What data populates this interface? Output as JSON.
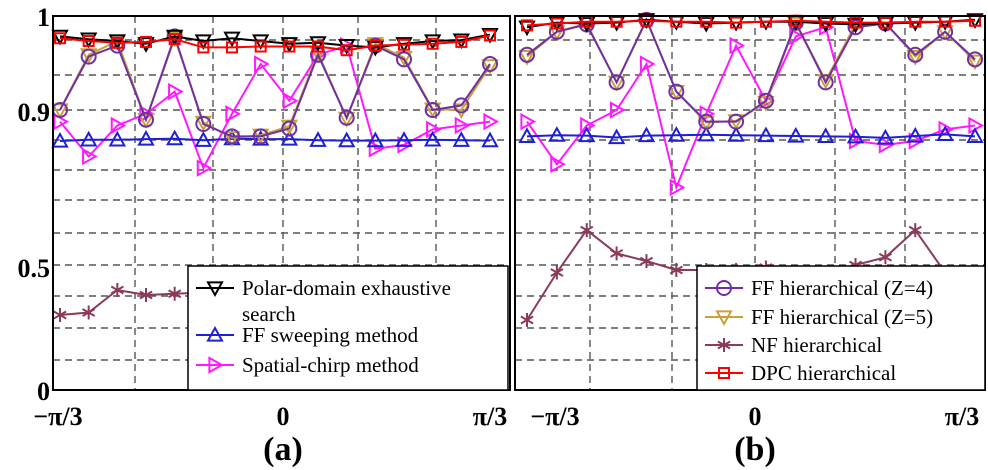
{
  "figure": {
    "y_ticks": [
      "1",
      "0.9",
      "0.5",
      "0"
    ],
    "x_ticks": [
      "−π/3",
      "0",
      "π/3"
    ]
  },
  "chart_data": [
    {
      "panel_label": "(a)",
      "type": "line",
      "title": "",
      "xlabel": "",
      "ylabel": "",
      "x_range": [
        "-π/3",
        "π/3"
      ],
      "x_points": 16,
      "y_scale": "nonlinear (0, 0.5, 0.9, 1 tick positions)",
      "ylim": [
        0,
        1
      ],
      "grid": true,
      "legend_position": "bottom-right",
      "series": [
        {
          "name": "Polar-domain exhaustive search",
          "color": "#000000",
          "marker": "triangle-down",
          "values": [
            0.98,
            0.977,
            0.975,
            0.972,
            0.98,
            0.975,
            0.978,
            0.975,
            0.972,
            0.973,
            0.97,
            0.968,
            0.972,
            0.975,
            0.976,
            0.982
          ]
        },
        {
          "name": "FF sweeping method",
          "color": "#1f1fd6",
          "marker": "triangle-up",
          "values": [
            0.82,
            0.823,
            0.823,
            0.825,
            0.826,
            0.822,
            0.826,
            0.825,
            0.825,
            0.822,
            0.821,
            0.821,
            0.822,
            0.823,
            0.822,
            0.821
          ]
        },
        {
          "name": "Spatial-chirp method",
          "color": "#ff19ff",
          "marker": "triangle-right",
          "values": [
            0.87,
            0.78,
            0.86,
            0.89,
            0.92,
            0.75,
            0.89,
            0.95,
            0.91,
            0.96,
            0.97,
            0.8,
            0.81,
            0.85,
            0.86,
            0.87
          ]
        },
        {
          "name": "FF hierarchical (Z=4)",
          "color": "#7030a0",
          "marker": "circle",
          "values": [
            0.9,
            0.958,
            0.97,
            0.875,
            0.98,
            0.864,
            0.832,
            0.832,
            0.852,
            0.96,
            0.88,
            0.97,
            0.955,
            0.9,
            0.905,
            0.95
          ]
        },
        {
          "name": "FF hierarchical (Z=5)",
          "color": "#c9a13a",
          "marker": "triangle-down",
          "values": [
            0.9,
            0.96,
            0.975,
            0.875,
            0.978,
            0.868,
            0.828,
            0.835,
            0.858,
            0.962,
            0.878,
            0.972,
            0.957,
            0.901,
            0.9,
            0.948
          ]
        },
        {
          "name": "NF hierarchical",
          "color": "#8b3a5a",
          "marker": "asterisk",
          "values": [
            0.3,
            0.31,
            0.4,
            0.38,
            0.385,
            0.39,
            0.4,
            0.41,
            0.41,
            0.4,
            0.4,
            0.4,
            0.39,
            0.37,
            0.35,
            0.3
          ]
        },
        {
          "name": "DPC hierarchical",
          "color": "#ff0000",
          "marker": "square",
          "values": [
            0.978,
            0.975,
            0.973,
            0.974,
            0.977,
            0.968,
            0.968,
            0.969,
            0.969,
            0.969,
            0.965,
            0.97,
            0.971,
            0.972,
            0.974,
            0.981
          ]
        }
      ],
      "legend": {
        "entries": [
          {
            "lines": [
              "Polar-domain exhaustive",
              "search"
            ],
            "color": "#000000",
            "marker": "triangle-down"
          },
          {
            "lines": [
              "FF sweeping method"
            ],
            "color": "#1f1fd6",
            "marker": "triangle-up"
          },
          {
            "lines": [
              "Spatial-chirp method"
            ],
            "color": "#ff19ff",
            "marker": "triangle-right"
          }
        ]
      }
    },
    {
      "panel_label": "(b)",
      "type": "line",
      "title": "",
      "xlabel": "",
      "ylabel": "",
      "x_range": [
        "-π/3",
        "π/3"
      ],
      "x_points": 16,
      "y_scale": "nonlinear (0, 0.5, 0.9, 1 tick positions)",
      "ylim": [
        0,
        1
      ],
      "grid": true,
      "legend_position": "bottom-right",
      "series": [
        {
          "name": "Polar-domain exhaustive search",
          "color": "#000000",
          "marker": "triangle-down",
          "values": [
            0.99,
            0.995,
            0.994,
            0.995,
            0.998,
            0.996,
            0.994,
            0.995,
            0.996,
            0.996,
            0.994,
            0.993,
            0.994,
            0.995,
            0.996,
            0.998
          ]
        },
        {
          "name": "FF sweeping method",
          "color": "#1f1fd6",
          "marker": "triangle-up",
          "values": [
            0.832,
            0.835,
            0.834,
            0.829,
            0.834,
            0.835,
            0.836,
            0.835,
            0.834,
            0.833,
            0.832,
            0.831,
            0.828,
            0.833,
            0.837,
            0.832
          ]
        },
        {
          "name": "Spatial-chirp method",
          "color": "#ff19ff",
          "marker": "triangle-right",
          "values": [
            0.87,
            0.76,
            0.86,
            0.9,
            0.95,
            0.7,
            0.89,
            0.97,
            0.91,
            0.98,
            0.99,
            0.82,
            0.81,
            0.82,
            0.85,
            0.86
          ]
        },
        {
          "name": "FF hierarchical (Z=4)",
          "color": "#7030a0",
          "marker": "circle",
          "values": [
            0.96,
            0.985,
            0.993,
            0.93,
            0.998,
            0.92,
            0.87,
            0.87,
            0.91,
            0.995,
            0.93,
            0.99,
            0.994,
            0.96,
            0.985,
            0.955
          ]
        },
        {
          "name": "FF hierarchical (Z=5)",
          "color": "#c9a13a",
          "marker": "triangle-down",
          "values": [
            0.958,
            0.985,
            0.994,
            0.93,
            0.998,
            0.92,
            0.868,
            0.872,
            0.908,
            0.994,
            0.932,
            0.993,
            0.995,
            0.958,
            0.985,
            0.953
          ]
        },
        {
          "name": "NF hierarchical",
          "color": "#8b3a5a",
          "marker": "asterisk",
          "values": [
            0.28,
            0.47,
            0.59,
            0.53,
            0.51,
            0.48,
            0.48,
            0.48,
            0.49,
            0.47,
            0.47,
            0.5,
            0.52,
            0.59,
            0.47,
            0.28
          ]
        },
        {
          "name": "DPC hierarchical",
          "color": "#ff0000",
          "marker": "square",
          "values": [
            0.992,
            0.994,
            0.996,
            0.996,
            0.997,
            0.996,
            0.996,
            0.995,
            0.996,
            0.997,
            0.996,
            0.995,
            0.995,
            0.996,
            0.996,
            0.997
          ]
        }
      ],
      "legend": {
        "entries": [
          {
            "lines": [
              "FF hierarchical (Z=4)"
            ],
            "color": "#7030a0",
            "marker": "circle"
          },
          {
            "lines": [
              "FF hierarchical (Z=5)"
            ],
            "color": "#c9a13a",
            "marker": "triangle-down"
          },
          {
            "lines": [
              "NF hierarchical"
            ],
            "color": "#8b3a5a",
            "marker": "asterisk"
          },
          {
            "lines": [
              "DPC hierarchical"
            ],
            "color": "#ff0000",
            "marker": "square"
          }
        ]
      }
    }
  ]
}
